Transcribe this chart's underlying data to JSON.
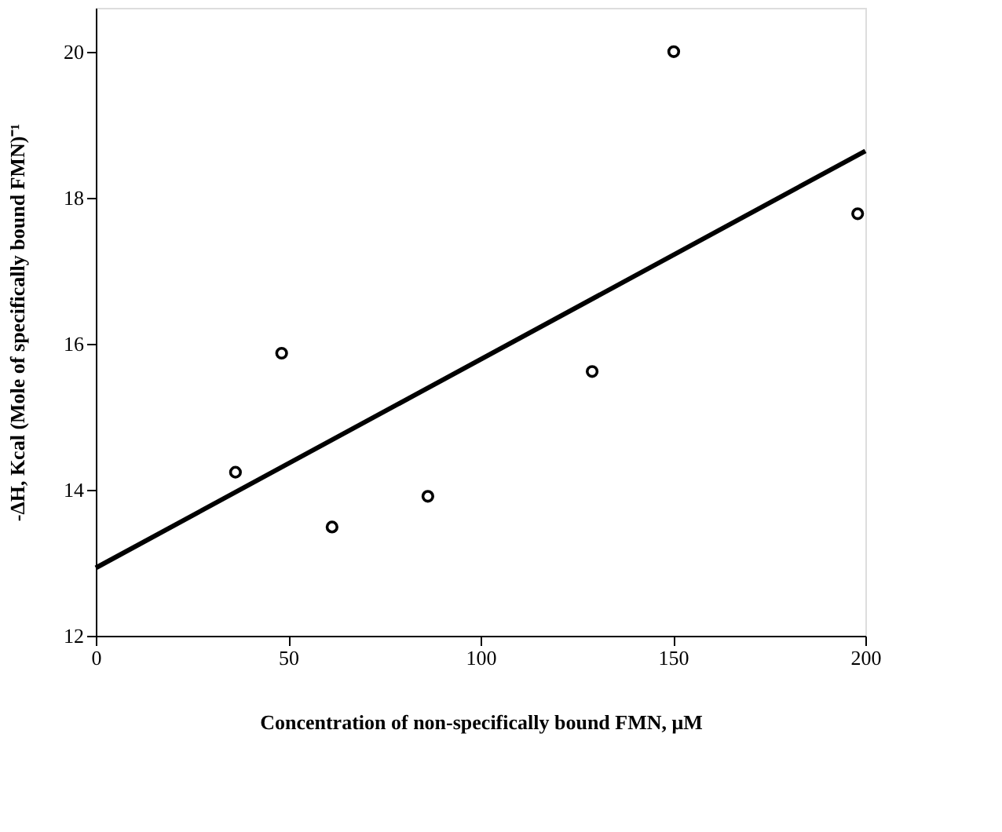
{
  "chart_data": {
    "type": "scatter",
    "xlabel": "Concentration of non-specifically bound FMN, μM",
    "ylabel": "-ΔH, Kcal (Mole of specifically bound FMN)⁻¹",
    "x": [
      36.3,
      48.3,
      61.4,
      86.3,
      129,
      150.2,
      198
    ],
    "series": [
      {
        "color": "#000000",
        "marker": "circle",
        "values": [
          14.24,
          15.87,
          13.49,
          13.91,
          15.62,
          20.0,
          17.78
        ]
      },
      {
        "type": "line",
        "color": "#000000",
        "marker": "none",
        "line_style": "solid",
        "x": [
          0,
          200
        ],
        "values": [
          12.93,
          18.64
        ]
      }
    ],
    "xlim": [
      0,
      200
    ],
    "xticks": [
      0,
      50,
      100,
      150,
      200
    ],
    "ylim": [
      12,
      20.6
    ],
    "yticks": [
      12,
      14,
      16,
      18,
      20
    ],
    "grid": false
  }
}
